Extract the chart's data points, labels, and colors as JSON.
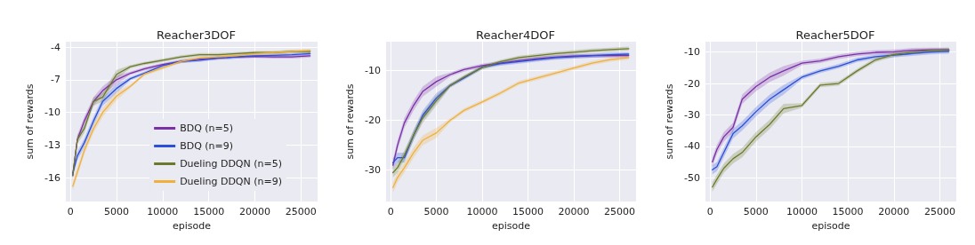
{
  "chart_data": [
    {
      "type": "line",
      "title": "Reacher3DOF",
      "xlabel": "episode",
      "ylabel": "sum of rewards",
      "xlim": [
        -500,
        26800
      ],
      "ylim": [
        -18.2,
        -3.5
      ],
      "xticks": [
        0,
        5000,
        10000,
        15000,
        20000,
        25000
      ],
      "yticks": [
        -16,
        -13,
        -10,
        -7,
        -4
      ],
      "grid": true,
      "legend": "bottom right",
      "marker": "none",
      "line_style": "solid",
      "x": [
        250,
        750,
        1500,
        2500,
        3500,
        5000,
        6500,
        8000,
        10000,
        12000,
        14000,
        16000,
        18000,
        20000,
        22000,
        24000,
        26000
      ],
      "series": [
        {
          "name": "BDQ (n=5)",
          "color": "#7b2fa8",
          "values": [
            -15.8,
            -12.5,
            -10.8,
            -9.0,
            -8.0,
            -7.0,
            -6.4,
            -6.0,
            -5.6,
            -5.3,
            -5.1,
            -5.0,
            -4.9,
            -4.85,
            -4.9,
            -4.9,
            -4.8
          ],
          "lower": [
            -16.2,
            -12.9,
            -11.2,
            -9.4,
            -8.4,
            -7.4,
            -6.55,
            -6.15,
            -5.75,
            -5.45,
            -5.25,
            -5.15,
            -5.05,
            -5.0,
            -5.05,
            -5.05,
            -4.95
          ],
          "upper": [
            -15.4,
            -12.1,
            -10.4,
            -8.6,
            -7.6,
            -6.6,
            -6.25,
            -5.85,
            -5.45,
            -5.15,
            -4.95,
            -4.85,
            -4.75,
            -4.7,
            -4.75,
            -4.75,
            -4.65
          ]
        },
        {
          "name": "BDQ (n=9)",
          "color": "#2a4fd8",
          "values": [
            -15.6,
            -14.0,
            -12.8,
            -10.8,
            -9.0,
            -7.8,
            -6.9,
            -6.4,
            -5.7,
            -5.3,
            -5.2,
            -5.0,
            -4.9,
            -4.8,
            -4.75,
            -4.7,
            -4.6
          ],
          "lower": [
            -16.0,
            -14.4,
            -13.2,
            -11.2,
            -9.4,
            -8.2,
            -7.05,
            -6.55,
            -5.85,
            -5.45,
            -5.35,
            -5.15,
            -5.05,
            -4.95,
            -4.9,
            -4.85,
            -4.75
          ],
          "upper": [
            -15.2,
            -13.6,
            -12.4,
            -10.4,
            -8.6,
            -7.4,
            -6.75,
            -6.25,
            -5.55,
            -5.15,
            -5.05,
            -4.85,
            -4.75,
            -4.65,
            -4.6,
            -4.55,
            -4.45
          ]
        },
        {
          "name": "Dueling DDQN (n=5)",
          "color": "#6b7a2a",
          "values": [
            -15.8,
            -12.5,
            -11.5,
            -9.0,
            -8.6,
            -6.5,
            -5.8,
            -5.5,
            -5.2,
            -4.9,
            -4.7,
            -4.7,
            -4.6,
            -4.5,
            -4.5,
            -4.4,
            -4.4
          ],
          "lower": [
            -16.2,
            -12.9,
            -11.9,
            -9.4,
            -9.0,
            -6.9,
            -5.95,
            -5.65,
            -5.35,
            -5.05,
            -4.85,
            -4.85,
            -4.75,
            -4.65,
            -4.65,
            -4.55,
            -4.55
          ],
          "upper": [
            -15.4,
            -12.1,
            -11.1,
            -8.6,
            -8.2,
            -6.1,
            -5.65,
            -5.35,
            -5.05,
            -4.75,
            -4.55,
            -4.55,
            -4.45,
            -4.35,
            -4.35,
            -4.25,
            -4.25
          ]
        },
        {
          "name": "Dueling DDQN (n=9)",
          "color": "#f0b03c",
          "values": [
            -16.8,
            -15.5,
            -13.5,
            -11.5,
            -10.0,
            -8.5,
            -7.6,
            -6.5,
            -5.9,
            -5.3,
            -5.0,
            -4.9,
            -4.8,
            -4.6,
            -4.5,
            -4.4,
            -4.3
          ],
          "lower": [
            -17.2,
            -15.9,
            -13.9,
            -11.9,
            -10.4,
            -8.9,
            -7.75,
            -6.65,
            -6.05,
            -5.45,
            -5.15,
            -5.05,
            -4.95,
            -4.75,
            -4.65,
            -4.55,
            -4.45
          ],
          "upper": [
            -16.4,
            -15.1,
            -13.1,
            -11.1,
            -9.6,
            -8.1,
            -7.45,
            -6.35,
            -5.75,
            -5.15,
            -4.85,
            -4.75,
            -4.65,
            -4.45,
            -4.35,
            -4.25,
            -4.15
          ]
        }
      ]
    },
    {
      "type": "line",
      "title": "Reacher4DOF",
      "xlabel": "episode",
      "ylabel": "sum of rewards",
      "xlim": [
        -500,
        26800
      ],
      "ylim": [
        -36.3,
        -4.2
      ],
      "xticks": [
        0,
        5000,
        10000,
        15000,
        20000,
        25000
      ],
      "yticks": [
        -30,
        -20,
        -10
      ],
      "grid": true,
      "marker": "none",
      "line_style": "solid",
      "x": [
        250,
        750,
        1500,
        2500,
        3500,
        5000,
        6500,
        8000,
        10000,
        12000,
        14000,
        16000,
        18000,
        20000,
        22000,
        24000,
        26000
      ],
      "series": [
        {
          "color": "#7b2fa8",
          "values": [
            -29,
            -25,
            -20.5,
            -17,
            -14.2,
            -12.2,
            -10.8,
            -9.8,
            -9.0,
            -8.5,
            -8.0,
            -7.6,
            -7.3,
            -7.1,
            -7.0,
            -7.0,
            -7.0
          ],
          "lower": [
            -30,
            -26,
            -21.5,
            -18,
            -15.2,
            -13.2,
            -11.2,
            -10.2,
            -9.4,
            -8.9,
            -8.4,
            -8.0,
            -7.7,
            -7.5,
            -7.4,
            -7.4,
            -7.4
          ],
          "upper": [
            -28,
            -24,
            -19.5,
            -16,
            -13.2,
            -11.2,
            -10.4,
            -9.4,
            -8.6,
            -8.1,
            -7.6,
            -7.2,
            -6.9,
            -6.7,
            -6.6,
            -6.6,
            -6.6
          ]
        },
        {
          "color": "#2a4fd8",
          "values": [
            -28.5,
            -27.5,
            -27.5,
            -23,
            -19,
            -15.5,
            -13.0,
            -11.5,
            -9.3,
            -8.6,
            -8.2,
            -7.8,
            -7.4,
            -7.2,
            -7.0,
            -6.8,
            -6.7
          ],
          "lower": [
            -29.5,
            -28.5,
            -28.5,
            -24,
            -20,
            -16.5,
            -13.4,
            -11.9,
            -9.7,
            -9.0,
            -8.6,
            -8.2,
            -7.8,
            -7.6,
            -7.4,
            -7.2,
            -7.1
          ],
          "upper": [
            -27.5,
            -26.5,
            -26.5,
            -22,
            -18,
            -14.5,
            -12.6,
            -11.1,
            -8.9,
            -8.2,
            -7.8,
            -7.4,
            -7.0,
            -6.8,
            -6.6,
            -6.4,
            -6.3
          ]
        },
        {
          "color": "#6b7a2a",
          "values": [
            -30.5,
            -29.5,
            -27,
            -23,
            -19.5,
            -16,
            -13,
            -11.3,
            -9.4,
            -8.2,
            -7.4,
            -7.0,
            -6.6,
            -6.3,
            -6.0,
            -5.8,
            -5.6
          ],
          "lower": [
            -31.5,
            -30.5,
            -28,
            -24,
            -20.5,
            -17,
            -13.4,
            -11.7,
            -9.8,
            -8.6,
            -7.8,
            -7.4,
            -7.0,
            -6.7,
            -6.4,
            -6.2,
            -6.0
          ],
          "upper": [
            -29.5,
            -28.5,
            -26,
            -22,
            -18.5,
            -15,
            -12.6,
            -10.9,
            -9.0,
            -7.8,
            -7.0,
            -6.6,
            -6.2,
            -5.9,
            -5.6,
            -5.4,
            -5.2
          ]
        },
        {
          "color": "#f0b03c",
          "values": [
            -33.5,
            -31.5,
            -29.5,
            -26.5,
            -24,
            -22.5,
            -20,
            -18,
            -16.3,
            -14.5,
            -12.5,
            -11.5,
            -10.5,
            -9.5,
            -8.5,
            -7.8,
            -7.4
          ],
          "lower": [
            -34.5,
            -32.5,
            -30.5,
            -27.5,
            -25,
            -23.5,
            -20.4,
            -18.4,
            -16.7,
            -14.9,
            -12.9,
            -11.9,
            -10.9,
            -9.9,
            -8.9,
            -8.2,
            -7.8
          ],
          "upper": [
            -32.5,
            -30.5,
            -28.5,
            -25.5,
            -23,
            -21.5,
            -19.6,
            -17.6,
            -15.9,
            -14.1,
            -12.1,
            -11.1,
            -10.1,
            -9.1,
            -8.1,
            -7.4,
            -7.0
          ]
        }
      ]
    },
    {
      "type": "line",
      "title": "Reacher5DOF",
      "xlabel": "episode",
      "ylabel": "sum of rewards",
      "xlim": [
        -500,
        26800
      ],
      "ylim": [
        -57.6,
        -6.7
      ],
      "xticks": [
        0,
        5000,
        10000,
        15000,
        20000,
        25000
      ],
      "yticks": [
        -50,
        -40,
        -30,
        -20,
        -10
      ],
      "grid": true,
      "marker": "none",
      "line_style": "solid",
      "x": [
        250,
        750,
        1500,
        2500,
        3500,
        5000,
        6500,
        8000,
        10000,
        12000,
        14000,
        16000,
        18000,
        20000,
        22000,
        24000,
        26000
      ],
      "series": [
        {
          "color": "#7b2fa8",
          "values": [
            -45,
            -41,
            -37,
            -34,
            -25,
            -21,
            -18,
            -16,
            -13.5,
            -12.8,
            -11.5,
            -10.6,
            -10.1,
            -9.9,
            -9.4,
            -9.3,
            -9.3
          ],
          "lower": [
            -46.5,
            -42.5,
            -38.5,
            -35.5,
            -26.5,
            -22.5,
            -19.5,
            -17.5,
            -14.2,
            -13.5,
            -12.2,
            -11.3,
            -10.8,
            -10.6,
            -10.1,
            -10.0,
            -10.0
          ],
          "upper": [
            -43.5,
            -39.5,
            -35.5,
            -32.5,
            -23.5,
            -19.5,
            -16.5,
            -14.5,
            -12.8,
            -12.1,
            -10.8,
            -9.9,
            -9.4,
            -9.2,
            -8.7,
            -8.6,
            -8.6
          ]
        },
        {
          "color": "#2a4fd8",
          "values": [
            -47.5,
            -46.5,
            -42,
            -36,
            -33.5,
            -29,
            -25,
            -22,
            -18,
            -16,
            -14.5,
            -12.5,
            -11.5,
            -11,
            -10.5,
            -10,
            -9.8
          ],
          "lower": [
            -49,
            -48,
            -43.5,
            -37.5,
            -35,
            -30.5,
            -26.5,
            -23.5,
            -18.7,
            -16.7,
            -15.2,
            -13.2,
            -12.2,
            -11.7,
            -11.2,
            -10.7,
            -10.5
          ],
          "upper": [
            -46,
            -45,
            -40.5,
            -34.5,
            -32,
            -27.5,
            -23.5,
            -20.5,
            -17.3,
            -15.3,
            -13.8,
            -11.8,
            -10.8,
            -10.3,
            -9.8,
            -9.3,
            -9.1
          ]
        },
        {
          "color": "#6b7a2a",
          "values": [
            -53,
            -50.5,
            -47,
            -44,
            -42,
            -37,
            -33,
            -28,
            -27,
            -20.5,
            -20,
            -16,
            -12.5,
            -10.8,
            -10,
            -9.5,
            -9.3
          ],
          "lower": [
            -54.5,
            -52,
            -48.5,
            -45.5,
            -43.5,
            -38.5,
            -34.5,
            -29.5,
            -27.7,
            -21.2,
            -20.7,
            -16.7,
            -13.2,
            -11.5,
            -10.7,
            -10.2,
            -10.0
          ],
          "upper": [
            -51.5,
            -49,
            -45.5,
            -42.5,
            -40.5,
            -35.5,
            -31.5,
            -26.5,
            -26.3,
            -19.8,
            -19.3,
            -15.3,
            -11.8,
            -10.1,
            -9.3,
            -8.8,
            -8.6
          ]
        }
      ]
    }
  ]
}
